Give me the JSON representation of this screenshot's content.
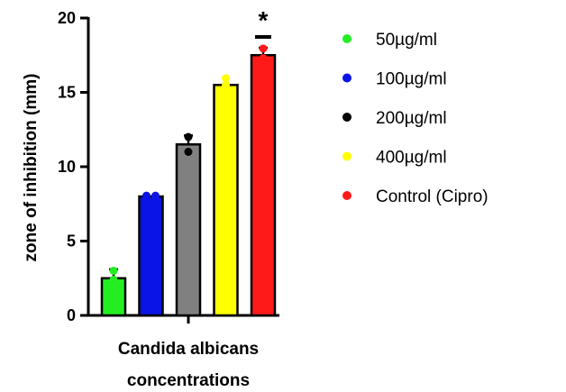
{
  "chart_data": {
    "type": "bar",
    "title": "",
    "xlabel": [
      "Candida albicans",
      "concentrations"
    ],
    "ylabel": "zone of inhibition (mm)",
    "ylim": [
      0,
      20
    ],
    "yticks": [
      0,
      5,
      10,
      15,
      20
    ],
    "grid": false,
    "legend_position": "right",
    "series": [
      {
        "name": "50µg/ml",
        "color": "#22ee22",
        "value": 2.5,
        "error": 0.6,
        "points": [
          3.0,
          2.4
        ]
      },
      {
        "name": "100µg/ml",
        "color": "#0a14e6",
        "value": 8.0,
        "error": 0.0,
        "points": [
          8.05,
          8.05
        ]
      },
      {
        "name": "200µg/ml",
        "color": "#808080",
        "marker_color": "#000000",
        "value": 11.5,
        "error": 0.6,
        "points": [
          12.0,
          11.0
        ]
      },
      {
        "name": "400µg/ml",
        "color": "#ffff00",
        "value": 15.5,
        "error": 0.0,
        "points": [
          15.95,
          15.5
        ]
      },
      {
        "name": "Control (Cipro)",
        "color": "#ff1a1a",
        "value": 17.5,
        "error": 0.5,
        "points": [
          17.95,
          17.3
        ]
      }
    ],
    "annotation": "*"
  }
}
